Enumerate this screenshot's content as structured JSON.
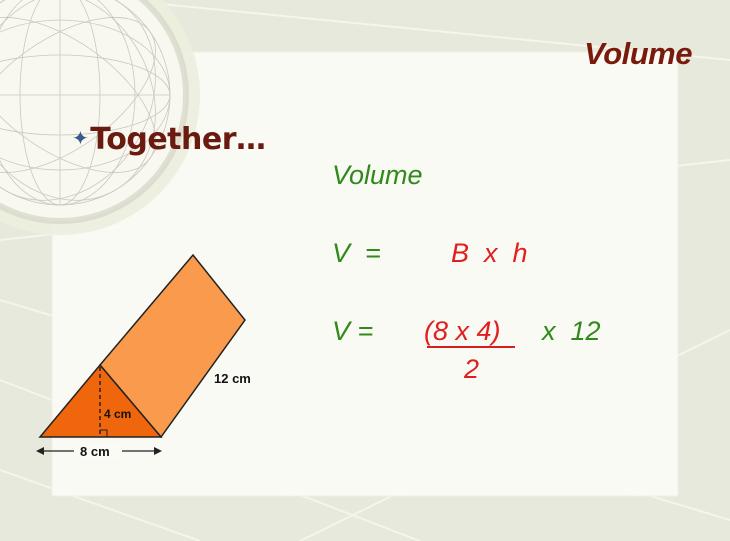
{
  "slide": {
    "title": "Volume",
    "bullet_text": "Together…",
    "bullet_star": "✦"
  },
  "formula": {
    "heading": "Volume",
    "line1_left": "V  =",
    "line1_right": "B  x  h",
    "line2_left": "V =",
    "line2_numerator": "(8 x 4)",
    "line2_multiplier": "x  12",
    "line2_denominator": "2"
  },
  "figure": {
    "length_label": "12 cm",
    "height_label": "4 cm",
    "base_label": "8 cm"
  },
  "colors": {
    "title": "#7a1a0c",
    "formula_green": "#2f8a1a",
    "formula_red": "#e02020",
    "prism_front": "#f0660c",
    "prism_side": "#f99a4c"
  }
}
